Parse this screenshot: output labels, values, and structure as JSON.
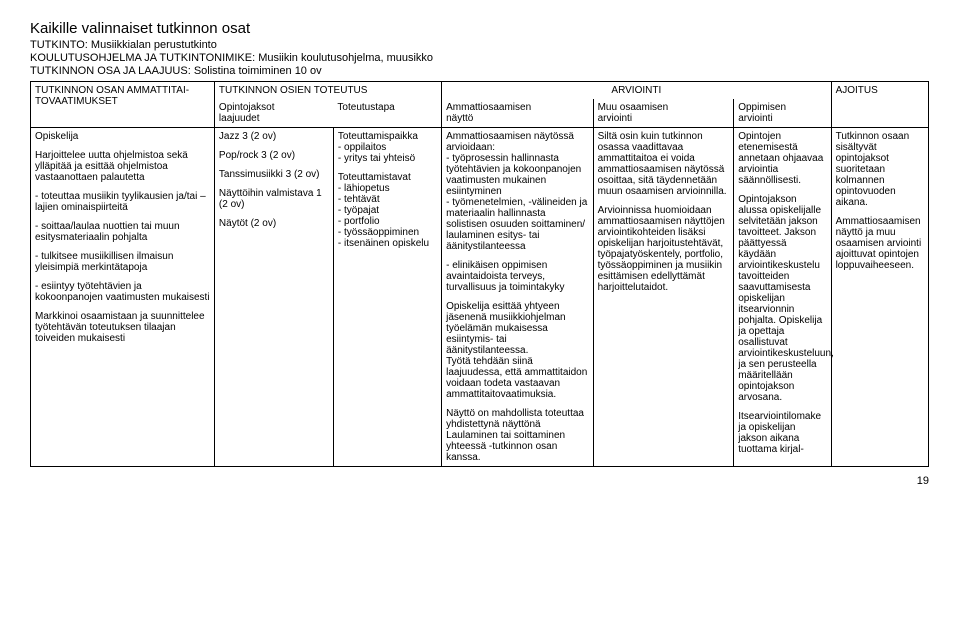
{
  "titles": {
    "main": "Kaikille valinnaiset tutkinnon osat",
    "sub1": "TUTKINTO: Musiikkialan perustutkinto",
    "sub2": "KOULUTUSOHJELMA JA TUTKINTONIMIKE: Musiikin koulutusohjelma, muusikko",
    "sub3": "TUTKINNON OSA JA LAAJUUS: Solistina toimiminen 10 ov"
  },
  "header": {
    "r1c1": "TUTKINNON OSAN AMMATTITAI-",
    "r2c1": "TOVAATIMUKSET",
    "r1c2": "TUTKINNON OSIEN TOTEUTUS",
    "r2c2a": "Opintojaksot",
    "r2c2a2": "laajuudet",
    "r2c2b": "Toteutustapa",
    "r1c3": "ARVIOINTI",
    "r2c3a": "Ammattiosaamisen",
    "r2c3a2": "näyttö",
    "r2c3b": "Muu osaamisen",
    "r2c3b2": "arviointi",
    "r2c3c": "Oppimisen",
    "r2c3c2": "arviointi",
    "r1c4": "AJOITUS"
  },
  "body": {
    "c1": {
      "p1": "Opiskelija",
      "p2": "Harjoittelee uutta ohjelmistoa sekä ylläpitää ja esittää ohjelmistoa vastaanottaen palautetta",
      "p3": "- toteuttaa musiikin tyylikausien ja/tai – lajien ominaispiirteitä",
      "p4": "- soittaa/laulaa nuottien tai muun esitysmateriaalin pohjalta",
      "p5": "- tulkitsee musiikillisen ilmaisun yleisimpiä merkintätapoja",
      "p6": "- esiintyy työtehtävien ja kokoonpanojen vaatimusten mukaisesti",
      "p7": "Markkinoi osaamistaan ja suunnittelee työtehtävän toteutuksen tilaajan toiveiden mukaisesti"
    },
    "c2": {
      "p1": "Jazz 3 (2 ov)",
      "p2": "Pop/rock 3 (2 ov)",
      "p3": "Tanssimusiikki 3 (2 ov)",
      "p4": "Näyttöihin valmistava 1 (2 ov)",
      "p5": "Näytöt (2 ov)"
    },
    "c3": {
      "p1": "Toteuttamispaikka",
      "l1a": "- oppilaitos",
      "l1b": "- yritys tai yhteisö",
      "p2": "Toteuttamistavat",
      "l2a": "- lähiopetus",
      "l2b": "- tehtävät",
      "l2c": "- työpajat",
      "l2d": "- portfolio",
      "l2e": "- työssäoppiminen",
      "l2f": "- itsenäinen opiskelu"
    },
    "c4": {
      "p1": "Ammattiosaamisen näytössä arvioidaan:",
      "l1": "- työprosessin hallinnasta työtehtävien ja kokoonpanojen vaatimusten mukainen esiintyminen",
      "l2": "- työmenetelmien, -välineiden ja materiaalin hallinnasta solistisen osuuden soittaminen/ laulaminen esitys- tai äänitystilanteessa",
      "l3": "- elinikäisen oppimisen avaintaidoista terveys, turvallisuus ja toimintakyky",
      "p2": "Opiskelija esittää yhtyeen jäsenenä musiikkiohjelman työelämän mukaisessa esiintymis- tai äänitystilanteessa.",
      "p3": "Työtä tehdään siinä laajuudessa, että ammattitaidon voidaan todeta vastaavan ammattitaitovaatimuksia.",
      "p4": "Näyttö on mahdollista toteuttaa yhdistettynä näyttönä Laulaminen tai soittaminen yhteessä -tutkinnon osan kanssa."
    },
    "c5": {
      "p1": "Siltä osin kuin tutkinnon osassa vaadittavaa ammattitaitoa ei voida ammattiosaamisen näytössä osoittaa, sitä täydennetään muun osaamisen arvioinnilla.",
      "p2": "Arvioinnissa huomioidaan ammattiosaamisen näyttöjen arviointikohteiden lisäksi opiskelijan harjoitustehtävät, työpajatyöskentely, portfolio, työssäoppiminen ja musiikin esittämisen edellyttämät harjoittelutaidot."
    },
    "c6": {
      "p1": "Opintojen etenemisestä annetaan ohjaavaa arviointia säännöllisesti.",
      "p2": "Opintojakson alussa opiskelijalle selvitetään jakson tavoitteet. Jakson päättyessä käydään arviointikeskustelu tavoitteiden saavuttamisesta opiskelijan itsearvionnin pohjalta. Opiskelija ja opettaja osallistuvat arviointikeskusteluun, ja sen perusteella määritellään opintojakson arvosana.",
      "p3": "Itsearviointilomake ja opiskelijan jakson aikana tuottama kirjal-"
    },
    "c7": {
      "p1": "Tutkinnon osaan sisältyvät opintojaksot suoritetaan kolmannen opintovuoden aikana.",
      "p2": "Ammattiosaamisen näyttö ja muu osaamisen arviointi ajoittuvat opintojen loppuvaiheeseen."
    }
  },
  "pageNum": "19"
}
